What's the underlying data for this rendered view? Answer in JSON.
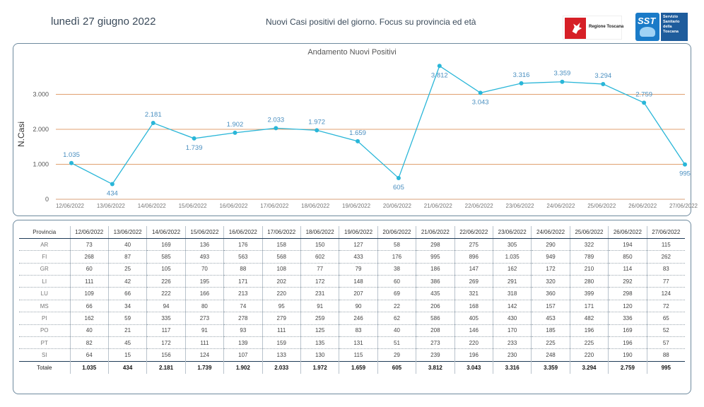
{
  "header": {
    "date": "lunedì 27 giugno 2022",
    "subtitle": "Nuovi Casi positivi del giorno. Focus su provincia ed età",
    "logo_regione": "Regione Toscana",
    "logo_sst_mark": "SST",
    "logo_sst_lines": [
      "Servizio",
      "Sanitario",
      "della",
      "Toscana"
    ]
  },
  "colors": {
    "line": "#29b6d8",
    "point_label": "#4a8fc0",
    "gridline": "#e0a070",
    "panel_border": "#6e8a9e",
    "table_rule": "#1f3b57"
  },
  "chart_data": {
    "type": "line",
    "title": "Andamento Nuovi Positivi",
    "ylabel": "N.Casi",
    "xlabel": "",
    "ylim": [
      0,
      4000
    ],
    "yticks": [
      0,
      1000,
      2000,
      3000
    ],
    "ytick_labels": [
      "0",
      "1.000",
      "2.000",
      "3.000"
    ],
    "grid": "horizontal",
    "categories": [
      "12/06/2022",
      "13/06/2022",
      "14/06/2022",
      "15/06/2022",
      "16/06/2022",
      "17/06/2022",
      "18/06/2022",
      "19/06/2022",
      "20/06/2022",
      "21/06/2022",
      "22/06/2022",
      "23/06/2022",
      "24/06/2022",
      "25/06/2022",
      "26/06/2022",
      "27/06/2022"
    ],
    "values": [
      1035,
      434,
      2181,
      1739,
      1902,
      2033,
      1972,
      1659,
      605,
      3812,
      3043,
      3316,
      3359,
      3294,
      2759,
      995
    ],
    "data_labels": [
      "1.035",
      "434",
      "2.181",
      "1.739",
      "1.902",
      "2.033",
      "1.972",
      "1.659",
      "605",
      "3.812",
      "3.043",
      "3.316",
      "3.359",
      "3.294",
      "2.759",
      "995"
    ],
    "label_position": [
      "above",
      "below",
      "above",
      "below",
      "above",
      "above",
      "above",
      "above",
      "below",
      "below",
      "below",
      "above",
      "above",
      "above",
      "above",
      "below"
    ]
  },
  "table": {
    "corner_header": "Provincia",
    "columns": [
      "12/06/2022",
      "13/06/2022",
      "14/06/2022",
      "15/06/2022",
      "16/06/2022",
      "17/06/2022",
      "18/06/2022",
      "19/06/2022",
      "20/06/2022",
      "21/06/2022",
      "22/06/2022",
      "23/06/2022",
      "24/06/2022",
      "25/06/2022",
      "26/06/2022",
      "27/06/2022"
    ],
    "rows": [
      {
        "name": "AR",
        "values": [
          "73",
          "40",
          "169",
          "136",
          "176",
          "158",
          "150",
          "127",
          "58",
          "298",
          "275",
          "305",
          "290",
          "322",
          "194",
          "115"
        ]
      },
      {
        "name": "FI",
        "values": [
          "268",
          "87",
          "585",
          "493",
          "563",
          "568",
          "602",
          "433",
          "176",
          "995",
          "896",
          "1.035",
          "949",
          "789",
          "850",
          "262"
        ]
      },
      {
        "name": "GR",
        "values": [
          "60",
          "25",
          "105",
          "70",
          "88",
          "108",
          "77",
          "79",
          "38",
          "186",
          "147",
          "162",
          "172",
          "210",
          "114",
          "83"
        ]
      },
      {
        "name": "LI",
        "values": [
          "111",
          "42",
          "226",
          "195",
          "171",
          "202",
          "172",
          "148",
          "60",
          "386",
          "269",
          "291",
          "320",
          "280",
          "292",
          "77"
        ]
      },
      {
        "name": "LU",
        "values": [
          "109",
          "66",
          "222",
          "166",
          "213",
          "220",
          "231",
          "207",
          "69",
          "435",
          "321",
          "318",
          "360",
          "399",
          "298",
          "124"
        ]
      },
      {
        "name": "MS",
        "values": [
          "66",
          "34",
          "94",
          "80",
          "74",
          "95",
          "91",
          "90",
          "22",
          "206",
          "168",
          "142",
          "157",
          "171",
          "120",
          "72"
        ]
      },
      {
        "name": "PI",
        "values": [
          "162",
          "59",
          "335",
          "273",
          "278",
          "279",
          "259",
          "246",
          "62",
          "586",
          "405",
          "430",
          "453",
          "482",
          "336",
          "65"
        ]
      },
      {
        "name": "PO",
        "values": [
          "40",
          "21",
          "117",
          "91",
          "93",
          "111",
          "125",
          "83",
          "40",
          "208",
          "146",
          "170",
          "185",
          "196",
          "169",
          "52"
        ]
      },
      {
        "name": "PT",
        "values": [
          "82",
          "45",
          "172",
          "111",
          "139",
          "159",
          "135",
          "131",
          "51",
          "273",
          "220",
          "233",
          "225",
          "225",
          "196",
          "57"
        ]
      },
      {
        "name": "SI",
        "values": [
          "64",
          "15",
          "156",
          "124",
          "107",
          "133",
          "130",
          "115",
          "29",
          "239",
          "196",
          "230",
          "248",
          "220",
          "190",
          "88"
        ]
      }
    ],
    "total": {
      "name": "Totale",
      "values": [
        "1.035",
        "434",
        "2.181",
        "1.739",
        "1.902",
        "2.033",
        "1.972",
        "1.659",
        "605",
        "3.812",
        "3.043",
        "3.316",
        "3.359",
        "3.294",
        "2.759",
        "995"
      ]
    }
  }
}
